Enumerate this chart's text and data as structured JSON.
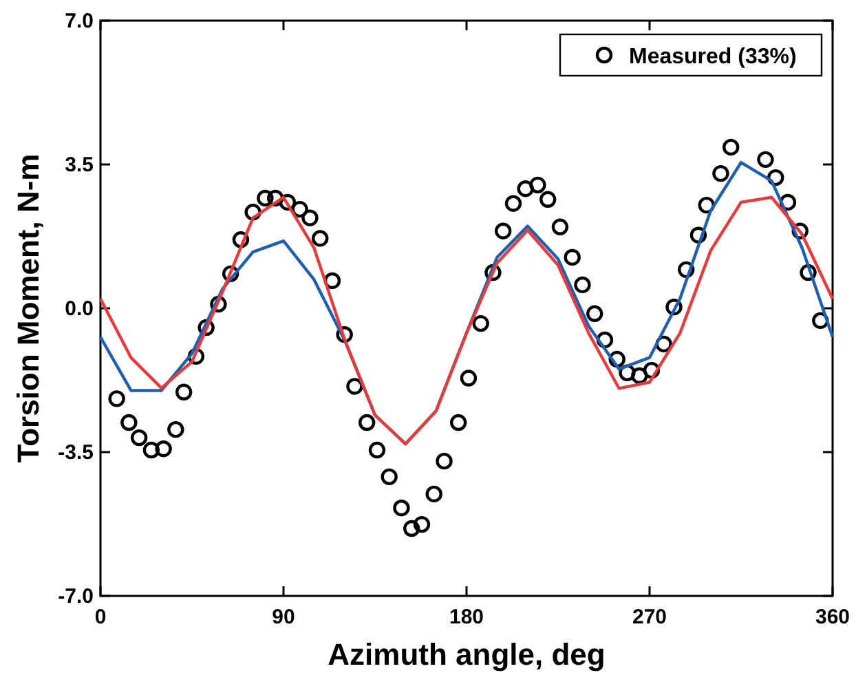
{
  "chart_data": {
    "type": "line",
    "xlabel": "Azimuth angle, deg",
    "ylabel": "Torsion Moment, N-m",
    "xlim": [
      0,
      360
    ],
    "xticks": [
      0,
      90,
      180,
      270,
      360
    ],
    "ylim": [
      -7,
      7
    ],
    "yticks": [
      {
        "value": -7,
        "label": "-7.0"
      },
      {
        "value": -3.5,
        "label": "-3.5"
      },
      {
        "value": 0,
        "label": "0.0"
      },
      {
        "value": 3.5,
        "label": "3.5"
      },
      {
        "value": 7,
        "label": "7.0"
      }
    ],
    "legend": "top right",
    "series": [
      {
        "name": "Measured (33%)",
        "type": "scatter",
        "marker": "circle",
        "color": "#000000",
        "x": [
          8,
          14,
          19,
          25,
          31,
          37,
          41,
          47,
          52,
          58,
          64,
          69,
          75,
          81,
          86,
          92,
          98,
          103,
          108,
          114,
          120,
          125,
          131,
          136,
          142,
          148,
          153,
          158,
          164,
          169,
          176,
          181,
          187,
          193,
          198,
          203,
          209,
          215,
          220,
          226,
          232,
          237,
          243,
          248,
          254,
          259,
          265,
          271,
          277,
          282,
          288,
          294,
          298,
          305,
          310,
          327,
          332,
          338,
          344,
          348,
          354
        ],
        "values": [
          -2.2,
          -2.78,
          -3.15,
          -3.45,
          -3.42,
          -2.95,
          -2.04,
          -1.17,
          -0.47,
          0.1,
          0.84,
          1.67,
          2.34,
          2.68,
          2.68,
          2.58,
          2.41,
          2.2,
          1.7,
          0.67,
          -0.64,
          -1.9,
          -2.78,
          -3.45,
          -4.1,
          -4.86,
          -5.36,
          -5.26,
          -4.52,
          -3.72,
          -2.78,
          -1.7,
          -0.37,
          0.87,
          1.88,
          2.55,
          2.91,
          3.0,
          2.65,
          1.98,
          1.24,
          0.57,
          -0.13,
          -0.77,
          -1.24,
          -1.57,
          -1.64,
          -1.51,
          -0.87,
          0.03,
          0.94,
          1.78,
          2.51,
          3.28,
          3.92,
          3.62,
          3.18,
          2.58,
          1.88,
          0.87,
          -0.3
        ]
      },
      {
        "type": "line",
        "color": "#1f5fb0",
        "x": [
          0,
          15,
          30,
          45,
          60,
          75,
          90,
          105,
          120,
          135,
          150,
          165,
          180,
          195,
          210,
          225,
          240,
          255,
          270,
          285,
          300,
          315,
          330,
          345,
          360
        ],
        "values": [
          -0.7,
          -2.0,
          -2.0,
          -1.1,
          0.47,
          1.37,
          1.64,
          0.7,
          -0.77,
          -2.6,
          -3.3,
          -2.5,
          -0.6,
          1.24,
          2.0,
          1.2,
          -0.43,
          -1.48,
          -1.2,
          0.24,
          2.37,
          3.55,
          3.1,
          1.47,
          -0.7
        ]
      },
      {
        "type": "line",
        "color": "#e83a3a",
        "x": [
          0,
          15,
          30,
          45,
          60,
          75,
          90,
          105,
          120,
          135,
          150,
          165,
          180,
          195,
          210,
          225,
          240,
          255,
          270,
          285,
          300,
          315,
          330,
          345,
          360
        ],
        "values": [
          0.23,
          -1.2,
          -1.94,
          -1.3,
          0.4,
          2.2,
          2.7,
          1.47,
          -0.75,
          -2.6,
          -3.3,
          -2.5,
          -0.6,
          1.1,
          1.9,
          1.05,
          -0.6,
          -1.95,
          -1.8,
          -0.6,
          1.4,
          2.58,
          2.7,
          1.8,
          0.23
        ]
      }
    ]
  }
}
